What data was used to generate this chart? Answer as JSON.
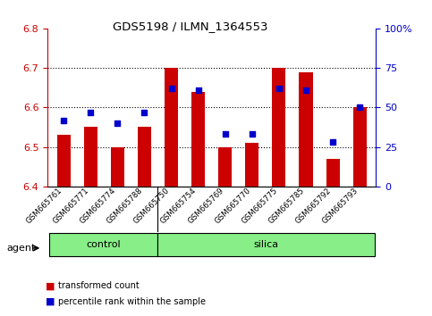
{
  "title": "GDS5198 / ILMN_1364553",
  "samples": [
    "GSM665761",
    "GSM665771",
    "GSM665774",
    "GSM665788",
    "GSM665750",
    "GSM665754",
    "GSM665769",
    "GSM665770",
    "GSM665775",
    "GSM665785",
    "GSM665792",
    "GSM665793"
  ],
  "bar_values": [
    6.53,
    6.55,
    6.5,
    6.55,
    6.7,
    6.64,
    6.5,
    6.51,
    6.7,
    6.69,
    6.47,
    6.6
  ],
  "dot_values": [
    42,
    47,
    40,
    47,
    62,
    61,
    33,
    33,
    62,
    61,
    28,
    50
  ],
  "bar_base": 6.4,
  "ylim_left": [
    6.4,
    6.8
  ],
  "ylim_right": [
    0,
    100
  ],
  "yticks_left": [
    6.4,
    6.5,
    6.6,
    6.7,
    6.8
  ],
  "yticks_right": [
    0,
    25,
    50,
    75,
    100
  ],
  "ytick_right_labels": [
    "0",
    "25",
    "50",
    "75",
    "100%"
  ],
  "bar_color": "#cc0000",
  "dot_color": "#0000cc",
  "control_label": "control",
  "silica_label": "silica",
  "agent_label": "agent",
  "group_bg_color": "#88ee88",
  "legend_bar_label": "transformed count",
  "legend_dot_label": "percentile rank within the sample",
  "grid_dotted_at": [
    6.5,
    6.6,
    6.7
  ],
  "tick_label_color_left": "#cc0000",
  "tick_label_color_right": "#0000cc"
}
